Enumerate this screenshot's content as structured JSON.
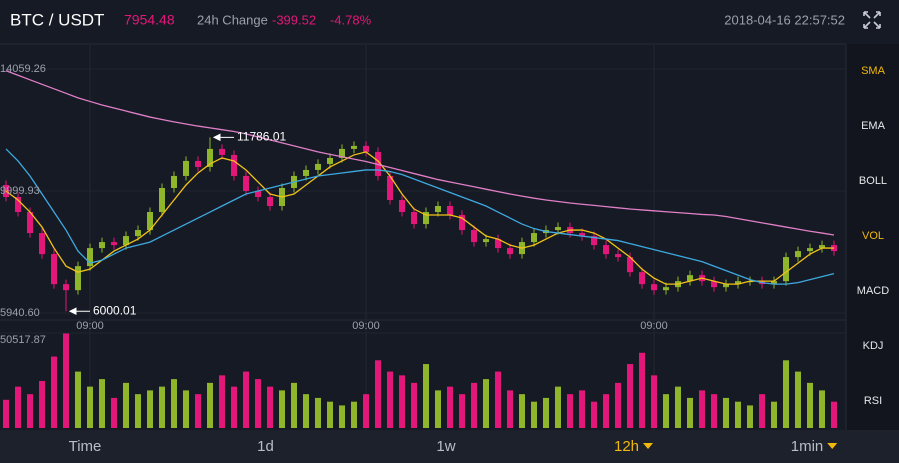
{
  "header": {
    "pair": "BTC / USDT",
    "price": "7954.48",
    "change_label": "24h Change",
    "change": "-399.52",
    "change_percent": "-4.78%",
    "datetime": "2018-04-16 22:57:52"
  },
  "indicators": [
    {
      "label": "SMA",
      "active": true
    },
    {
      "label": "EMA",
      "active": false
    },
    {
      "label": "BOLL",
      "active": false
    },
    {
      "label": "VOL",
      "active": true
    },
    {
      "label": "MACD",
      "active": false
    },
    {
      "label": "KDJ",
      "active": false
    },
    {
      "label": "RSI",
      "active": false
    }
  ],
  "intervals": [
    {
      "label": "Time",
      "active": false,
      "dropdown": false
    },
    {
      "label": "1d",
      "active": false,
      "dropdown": false
    },
    {
      "label": "1w",
      "active": false,
      "dropdown": false
    },
    {
      "label": "12h",
      "active": true,
      "dropdown": true
    },
    {
      "label": "1min",
      "active": false,
      "dropdown": true
    }
  ],
  "chart_data": {
    "type": "candlestick",
    "categories": [
      null,
      null,
      null,
      null,
      null,
      null,
      null,
      "09:00",
      null,
      null,
      null,
      null,
      null,
      null,
      null,
      null,
      null,
      null,
      null,
      null,
      null,
      null,
      null,
      null,
      null,
      null,
      null,
      null,
      null,
      null,
      "09:00",
      null,
      null,
      null,
      null,
      null,
      null,
      null,
      null,
      null,
      null,
      null,
      null,
      null,
      null,
      null,
      null,
      null,
      null,
      null,
      null,
      null,
      null,
      null,
      "09:00",
      null,
      null,
      null,
      null,
      null,
      null,
      null,
      null,
      null,
      null,
      null,
      null,
      null,
      null,
      null
    ],
    "open": [
      10200,
      9800,
      9300,
      8600,
      7900,
      6900,
      6700,
      7500,
      8100,
      8300,
      8200,
      8500,
      8700,
      9300,
      10100,
      10500,
      11000,
      10800,
      11400,
      11200,
      10500,
      10000,
      9800,
      9500,
      10100,
      10500,
      10700,
      10900,
      11100,
      11400,
      11500,
      11300,
      10500,
      9700,
      9300,
      8900,
      9300,
      9500,
      9200,
      8700,
      8300,
      8400,
      8100,
      7900,
      8300,
      8600,
      8700,
      8800,
      8600,
      8500,
      8200,
      7900,
      7800,
      7300,
      6900,
      6700,
      6800,
      7000,
      7200,
      7000,
      6800,
      6900,
      7000,
      7000,
      6900,
      7000,
      7800,
      8000,
      8100,
      8200
    ],
    "high": [
      10350,
      9950,
      9450,
      8750,
      8050,
      7050,
      7650,
      8250,
      8450,
      8450,
      8650,
      8850,
      9450,
      10250,
      10650,
      11150,
      11150,
      11786.01,
      11550,
      11350,
      10650,
      10150,
      9950,
      10250,
      10650,
      10850,
      11050,
      11250,
      11550,
      11650,
      11650,
      11450,
      10650,
      9850,
      9450,
      9450,
      9650,
      9650,
      9350,
      8850,
      8550,
      8550,
      8250,
      8450,
      8750,
      8850,
      8950,
      8950,
      8750,
      8650,
      8350,
      8050,
      7950,
      7450,
      7050,
      6950,
      7150,
      7350,
      7350,
      7150,
      7050,
      7150,
      7150,
      7150,
      7150,
      7950,
      8150,
      8250,
      8350,
      8350
    ],
    "low": [
      9650,
      9150,
      8450,
      7750,
      6750,
      6000.01,
      6550,
      7350,
      7950,
      8050,
      8050,
      8350,
      8550,
      9150,
      9950,
      10350,
      10650,
      10650,
      11050,
      10350,
      9850,
      9650,
      9350,
      9350,
      9950,
      10350,
      10550,
      10750,
      10950,
      11250,
      11150,
      10350,
      9550,
      9150,
      8750,
      8750,
      9150,
      9050,
      8550,
      8150,
      8150,
      7950,
      7750,
      7750,
      8150,
      8450,
      8550,
      8450,
      8350,
      8050,
      7750,
      7650,
      7150,
      6750,
      6550,
      6550,
      6650,
      6850,
      6850,
      6650,
      6650,
      6750,
      6850,
      6750,
      6750,
      6850,
      7650,
      7850,
      7950,
      7850
    ],
    "close": [
      9800,
      9300,
      8600,
      7900,
      6900,
      6700,
      7500,
      8100,
      8300,
      8200,
      8500,
      8700,
      9300,
      10100,
      10500,
      11000,
      10800,
      11400,
      11200,
      10500,
      10000,
      9800,
      9500,
      10100,
      10500,
      10700,
      10900,
      11100,
      11400,
      11500,
      11300,
      10500,
      9700,
      9300,
      8900,
      9300,
      9500,
      9200,
      8700,
      8300,
      8400,
      8100,
      7900,
      8300,
      8600,
      8700,
      8800,
      8600,
      8500,
      8200,
      7900,
      7800,
      7300,
      6900,
      6700,
      6800,
      7000,
      7200,
      7000,
      6800,
      6900,
      7000,
      7000,
      6900,
      7000,
      7800,
      8000,
      8100,
      8200,
      8000
    ],
    "up_color": "#8fb52a",
    "down_color": "#e3177a",
    "series": [
      {
        "color": "#f2c318",
        "values": [
          10000,
          9700,
          9300,
          8800,
          8100,
          7500,
          7300,
          7400,
          7700,
          8000,
          8200,
          8400,
          8700,
          9200,
          9700,
          10200,
          10600,
          10900,
          11100,
          11000,
          10700,
          10300,
          9900,
          9800,
          9900,
          10200,
          10500,
          10800,
          11000,
          11200,
          11300,
          11000,
          10500,
          9900,
          9400,
          9200,
          9200,
          9200,
          9100,
          8800,
          8500,
          8400,
          8200,
          8100,
          8200,
          8400,
          8600,
          8700,
          8700,
          8600,
          8400,
          8100,
          7800,
          7400,
          7100,
          6900,
          6900,
          7000,
          7100,
          7000,
          6900,
          6900,
          7000,
          7000,
          7000,
          7300,
          7600,
          7900,
          8100,
          8100
        ]
      },
      {
        "color": "#3ea9e0",
        "values": [
          11400,
          11000,
          10500,
          9900,
          9300,
          8700,
          8000,
          7600,
          7700,
          7900,
          8100,
          8200,
          8300,
          8500,
          8700,
          8900,
          9100,
          9300,
          9500,
          9700,
          9900,
          10000,
          10100,
          10200,
          10300,
          10400,
          10500,
          10550,
          10600,
          10650,
          10700,
          10700,
          10650,
          10550,
          10400,
          10250,
          10100,
          9950,
          9800,
          9650,
          9500,
          9300,
          9100,
          8900,
          8750,
          8650,
          8600,
          8550,
          8500,
          8450,
          8400,
          8350,
          8250,
          8150,
          8050,
          7950,
          7850,
          7750,
          7650,
          7500,
          7350,
          7200,
          7050,
          6950,
          6900,
          6900,
          6950,
          7050,
          7150,
          7250
        ]
      },
      {
        "color": "#e07fc8",
        "values": [
          14000,
          13850,
          13700,
          13550,
          13400,
          13250,
          13100,
          12980,
          12860,
          12760,
          12660,
          12560,
          12460,
          12380,
          12300,
          12230,
          12160,
          12100,
          12040,
          11980,
          11900,
          11800,
          11700,
          11600,
          11500,
          11400,
          11300,
          11220,
          11140,
          11060,
          10980,
          10880,
          10780,
          10680,
          10580,
          10480,
          10380,
          10300,
          10220,
          10140,
          10060,
          9980,
          9900,
          9830,
          9760,
          9700,
          9650,
          9600,
          9560,
          9520,
          9480,
          9440,
          9400,
          9370,
          9340,
          9310,
          9280,
          9250,
          9220,
          9200,
          9150,
          9080,
          9010,
          8940,
          8870,
          8800,
          8730,
          8660,
          8600,
          8535
        ]
      }
    ],
    "ylim": [
      5707,
      14858
    ],
    "yticks": [
      14059.26,
      9999.93,
      {
        "value": 5940.6,
        "label": "5940.60"
      }
    ],
    "volume": [
      15000,
      22000,
      18000,
      25000,
      38000,
      50517.87,
      30000,
      22000,
      26000,
      16000,
      24000,
      18000,
      20000,
      22000,
      26000,
      20000,
      18000,
      24000,
      28000,
      22000,
      30000,
      26000,
      22000,
      20000,
      24000,
      18000,
      16000,
      14000,
      12000,
      14000,
      18000,
      36000,
      30000,
      28000,
      24000,
      34000,
      20000,
      22000,
      18000,
      24000,
      26000,
      30000,
      20000,
      18000,
      14000,
      16000,
      22000,
      18000,
      20000,
      14000,
      18000,
      24000,
      34000,
      40000,
      28000,
      18000,
      22000,
      16000,
      20000,
      18000,
      16000,
      14000,
      12000,
      18000,
      14000,
      36000,
      30000,
      24000,
      20000,
      14000
    ],
    "volume_ylim": [
      0,
      50517.87
    ],
    "volume_yticks": [
      50517.87
    ]
  }
}
